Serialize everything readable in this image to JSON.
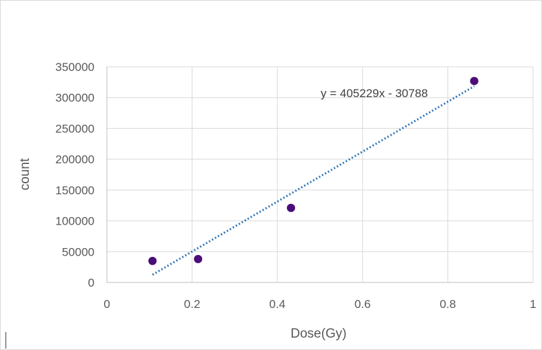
{
  "chart_data": {
    "type": "scatter",
    "title": "",
    "xlabel": "Dose(Gy)",
    "ylabel": "count",
    "xlim": [
      0,
      1
    ],
    "ylim": [
      0,
      350000
    ],
    "x_ticks": [
      "0",
      "0.2",
      "0.4",
      "0.6",
      "0.8",
      "1"
    ],
    "y_ticks": [
      "0",
      "50000",
      "100000",
      "150000",
      "200000",
      "250000",
      "300000",
      "350000"
    ],
    "grid": true,
    "legend": "none",
    "series": [
      {
        "points": [
          {
            "x": 0.107,
            "y": 35000
          },
          {
            "x": 0.214,
            "y": 38000
          },
          {
            "x": 0.432,
            "y": 121000
          },
          {
            "x": 0.862,
            "y": 327000
          }
        ],
        "color": "#4b0d78"
      }
    ],
    "trendline": {
      "equation": "y = 405229x - 30788",
      "slope": 405229,
      "intercept": -30788,
      "x_start": 0.107,
      "x_end": 0.862,
      "style": "dotted",
      "color": "#2e75b6"
    },
    "colors": {
      "grid": "#d9d9d9",
      "tick_text": "#595959",
      "axis": "#bfbfbf"
    }
  }
}
